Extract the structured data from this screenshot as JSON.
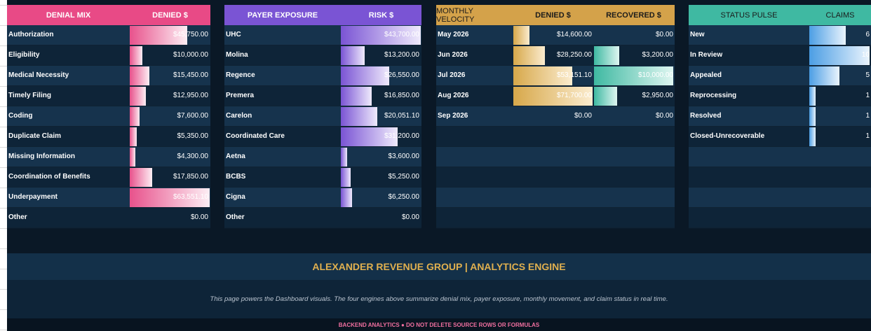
{
  "colors": {
    "denial_header": "#e84a86",
    "payer_header": "#7a54d4",
    "velocity_header": "#d4a24a",
    "status_header": "#3fb9a2",
    "brand_text": "#e0b04f",
    "disclaimer_text": "#f06f9f"
  },
  "denial_mix": {
    "header_label": "DENIAL MIX",
    "header_value": "DENIED $",
    "rows": [
      {
        "label": "Authorization",
        "value": "$45,750.00"
      },
      {
        "label": "Eligibility",
        "value": "$10,000.00"
      },
      {
        "label": "Medical Necessity",
        "value": "$15,450.00"
      },
      {
        "label": "Timely Filing",
        "value": "$12,950.00"
      },
      {
        "label": "Coding",
        "value": "$7,600.00"
      },
      {
        "label": "Duplicate Claim",
        "value": "$5,350.00"
      },
      {
        "label": "Missing Information",
        "value": "$4,300.00"
      },
      {
        "label": "Coordination of Benefits",
        "value": "$17,850.00"
      },
      {
        "label": "Underpayment",
        "value": "$63,551.10"
      },
      {
        "label": "Other",
        "value": "$0.00"
      }
    ]
  },
  "payer_exposure": {
    "header_label": "PAYER EXPOSURE",
    "header_value": "RISK $",
    "rows": [
      {
        "label": "UHC",
        "value": "$43,700.00"
      },
      {
        "label": "Molina",
        "value": "$13,200.00"
      },
      {
        "label": "Regence",
        "value": "$26,550.00"
      },
      {
        "label": "Premera",
        "value": "$16,850.00"
      },
      {
        "label": "Carelon",
        "value": "$20,051.10"
      },
      {
        "label": "Coordinated Care",
        "value": "$31,200.00"
      },
      {
        "label": "Aetna",
        "value": "$3,600.00"
      },
      {
        "label": "BCBS",
        "value": "$5,250.00"
      },
      {
        "label": "Cigna",
        "value": "$6,250.00"
      },
      {
        "label": "Other",
        "value": "$0.00"
      }
    ]
  },
  "monthly_velocity": {
    "header_label": "MONTHLY VELOCITY",
    "header_denied": "DENIED $",
    "header_recovered": "RECOVERED $",
    "rows": [
      {
        "month": "May 2026",
        "denied": "$14,600.00",
        "recovered": "$0.00"
      },
      {
        "month": "Jun 2026",
        "denied": "$28,250.00",
        "recovered": "$3,200.00"
      },
      {
        "month": "Jul 2026",
        "denied": "$53,151.10",
        "recovered": "$10,000.00"
      },
      {
        "month": "Aug 2026",
        "denied": "$71,700.00",
        "recovered": "$2,950.00"
      },
      {
        "month": "Sep 2026",
        "denied": "$0.00",
        "recovered": "$0.00"
      }
    ]
  },
  "status_pulse": {
    "header_label": "STATUS PULSE",
    "header_value": "CLAIMS",
    "rows": [
      {
        "label": "New",
        "value": "6"
      },
      {
        "label": "In Review",
        "value": "10"
      },
      {
        "label": "Appealed",
        "value": "5"
      },
      {
        "label": "Reprocessing",
        "value": "1"
      },
      {
        "label": "Resolved",
        "value": "1"
      },
      {
        "label": "Closed-Unrecoverable",
        "value": "1"
      }
    ]
  },
  "footer": {
    "brand": "ALEXANDER REVENUE GROUP | ANALYTICS ENGINE",
    "description": "This page powers the Dashboard visuals. The four engines above summarize denial mix, payer exposure, monthly movement, and claim status in real time.",
    "disclaimer": "BACKEND ANALYTICS ● DO NOT DELETE SOURCE ROWS OR FORMULAS"
  }
}
